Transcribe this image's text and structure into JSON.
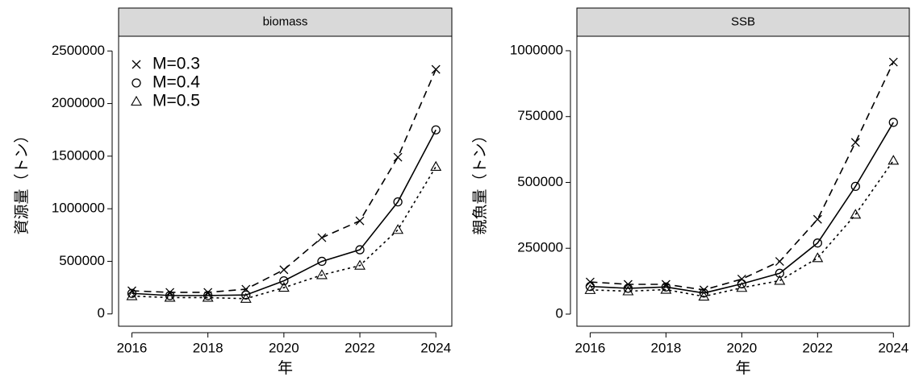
{
  "chart_data": [
    {
      "type": "line",
      "title": "biomass",
      "y_label": "資源量（トン）",
      "x_label": "年",
      "x": [
        2016,
        2017,
        2018,
        2019,
        2020,
        2021,
        2022,
        2023,
        2024
      ],
      "xlim": [
        2015.65,
        2024.42
      ],
      "xticks": [
        2016,
        2018,
        2020,
        2022,
        2024
      ],
      "ylim": [
        -117000,
        2640000
      ],
      "yticks": [
        0,
        500000,
        1000000,
        1500000,
        2000000,
        2500000
      ],
      "legend": "top-left",
      "series": [
        {
          "name": "M=0.3",
          "color": "#000000",
          "line_style": "dashed",
          "marker": "x",
          "values": [
            220000,
            205000,
            205000,
            235000,
            420000,
            725000,
            885000,
            1490000,
            2325000
          ]
        },
        {
          "name": "M=0.4",
          "color": "#000000",
          "line_style": "solid",
          "marker": "circle",
          "values": [
            195000,
            175000,
            175000,
            180000,
            315000,
            500000,
            610000,
            1065000,
            1750000
          ]
        },
        {
          "name": "M=0.5",
          "color": "#000000",
          "line_style": "dotted",
          "marker": "triangle",
          "values": [
            170000,
            155000,
            155000,
            145000,
            250000,
            370000,
            460000,
            800000,
            1400000
          ]
        }
      ]
    },
    {
      "type": "line",
      "title": "SSB",
      "y_label": "親魚量（トン）",
      "x_label": "年",
      "x": [
        2016,
        2017,
        2018,
        2019,
        2020,
        2021,
        2022,
        2023,
        2024
      ],
      "xlim": [
        2015.65,
        2024.42
      ],
      "xticks": [
        2016,
        2018,
        2020,
        2022,
        2024
      ],
      "ylim": [
        -46000,
        1055000
      ],
      "yticks": [
        0,
        250000,
        500000,
        750000,
        1000000
      ],
      "series": [
        {
          "color": "#000000",
          "line_style": "dashed",
          "marker": "x",
          "values": [
            122000,
            113000,
            113000,
            92000,
            133000,
            200000,
            360000,
            652000,
            957000
          ]
        },
        {
          "color": "#000000",
          "line_style": "solid",
          "marker": "circle",
          "values": [
            105000,
            98000,
            103000,
            80000,
            115000,
            155000,
            270000,
            485000,
            728000
          ]
        },
        {
          "color": "#000000",
          "line_style": "dotted",
          "marker": "triangle",
          "values": [
            92000,
            87000,
            93000,
            67000,
            100000,
            127000,
            213000,
            378000,
            583000
          ]
        }
      ]
    }
  ]
}
